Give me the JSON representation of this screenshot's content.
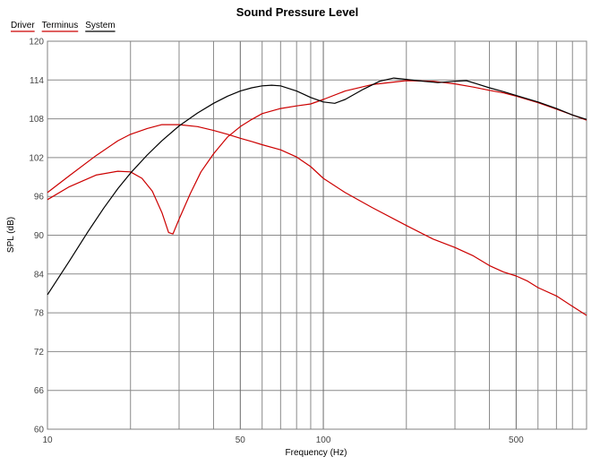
{
  "chart_data": {
    "type": "line",
    "title": "Sound Pressure Level",
    "xlabel": "Frequency (Hz)",
    "ylabel": "SPL (dB)",
    "x_scale": "log",
    "xlim": [
      10,
      900
    ],
    "ylim": [
      60,
      120
    ],
    "x_tick_labels": [
      {
        "value": 10,
        "label": "10"
      },
      {
        "value": 50,
        "label": "50"
      },
      {
        "value": 100,
        "label": "100"
      },
      {
        "value": 500,
        "label": "500"
      }
    ],
    "y_ticks": [
      60,
      66,
      72,
      78,
      84,
      90,
      96,
      102,
      108,
      114,
      120
    ],
    "grid": true,
    "legend_position": "top-left",
    "series": [
      {
        "name": "Driver",
        "color": "#cc0000",
        "points": [
          [
            10,
            95.5
          ],
          [
            12,
            97.5
          ],
          [
            15,
            99.3
          ],
          [
            18,
            99.9
          ],
          [
            20,
            99.8
          ],
          [
            22,
            98.8
          ],
          [
            24,
            96.8
          ],
          [
            26,
            93.5
          ],
          [
            27.5,
            90.4
          ],
          [
            28.5,
            90.2
          ],
          [
            30,
            92.5
          ],
          [
            33,
            96.5
          ],
          [
            36,
            99.8
          ],
          [
            40,
            102.6
          ],
          [
            45,
            105.2
          ],
          [
            50,
            106.8
          ],
          [
            55,
            107.9
          ],
          [
            60,
            108.8
          ],
          [
            70,
            109.6
          ],
          [
            80,
            110.0
          ],
          [
            90,
            110.3
          ],
          [
            100,
            111.0
          ],
          [
            120,
            112.3
          ],
          [
            150,
            113.3
          ],
          [
            200,
            113.9
          ],
          [
            250,
            113.8
          ],
          [
            300,
            113.4
          ],
          [
            350,
            112.9
          ],
          [
            400,
            112.4
          ],
          [
            450,
            112.0
          ],
          [
            500,
            111.5
          ],
          [
            600,
            110.5
          ],
          [
            700,
            109.5
          ],
          [
            800,
            108.6
          ],
          [
            900,
            107.8
          ]
        ]
      },
      {
        "name": "Terminus",
        "color": "#cc0000",
        "points": [
          [
            10,
            96.6
          ],
          [
            12,
            99.2
          ],
          [
            15,
            102.3
          ],
          [
            18,
            104.6
          ],
          [
            20,
            105.6
          ],
          [
            23,
            106.5
          ],
          [
            26,
            107.1
          ],
          [
            30,
            107.1
          ],
          [
            35,
            106.8
          ],
          [
            40,
            106.2
          ],
          [
            45,
            105.6
          ],
          [
            50,
            105.0
          ],
          [
            55,
            104.5
          ],
          [
            60,
            104.0
          ],
          [
            70,
            103.2
          ],
          [
            80,
            102.1
          ],
          [
            90,
            100.6
          ],
          [
            100,
            98.8
          ],
          [
            120,
            96.6
          ],
          [
            150,
            94.3
          ],
          [
            200,
            91.5
          ],
          [
            250,
            89.4
          ],
          [
            300,
            88.1
          ],
          [
            350,
            86.8
          ],
          [
            400,
            85.3
          ],
          [
            450,
            84.3
          ],
          [
            500,
            83.7
          ],
          [
            550,
            82.9
          ],
          [
            600,
            81.9
          ],
          [
            700,
            80.6
          ],
          [
            800,
            79.0
          ],
          [
            900,
            77.6
          ]
        ]
      },
      {
        "name": "System",
        "color": "#000000",
        "points": [
          [
            10,
            80.8
          ],
          [
            12,
            86.0
          ],
          [
            14,
            90.5
          ],
          [
            16,
            94.2
          ],
          [
            18,
            97.2
          ],
          [
            20,
            99.6
          ],
          [
            23,
            102.4
          ],
          [
            26,
            104.6
          ],
          [
            30,
            106.9
          ],
          [
            35,
            108.9
          ],
          [
            40,
            110.4
          ],
          [
            45,
            111.5
          ],
          [
            50,
            112.3
          ],
          [
            55,
            112.8
          ],
          [
            60,
            113.1
          ],
          [
            65,
            113.2
          ],
          [
            70,
            113.1
          ],
          [
            80,
            112.3
          ],
          [
            90,
            111.3
          ],
          [
            100,
            110.6
          ],
          [
            110,
            110.4
          ],
          [
            120,
            111.0
          ],
          [
            140,
            112.6
          ],
          [
            160,
            113.8
          ],
          [
            180,
            114.3
          ],
          [
            200,
            114.1
          ],
          [
            230,
            113.8
          ],
          [
            260,
            113.6
          ],
          [
            300,
            113.8
          ],
          [
            330,
            113.9
          ],
          [
            360,
            113.4
          ],
          [
            400,
            112.8
          ],
          [
            450,
            112.2
          ],
          [
            500,
            111.6
          ],
          [
            600,
            110.6
          ],
          [
            700,
            109.6
          ],
          [
            800,
            108.6
          ],
          [
            900,
            107.9
          ]
        ]
      }
    ]
  }
}
